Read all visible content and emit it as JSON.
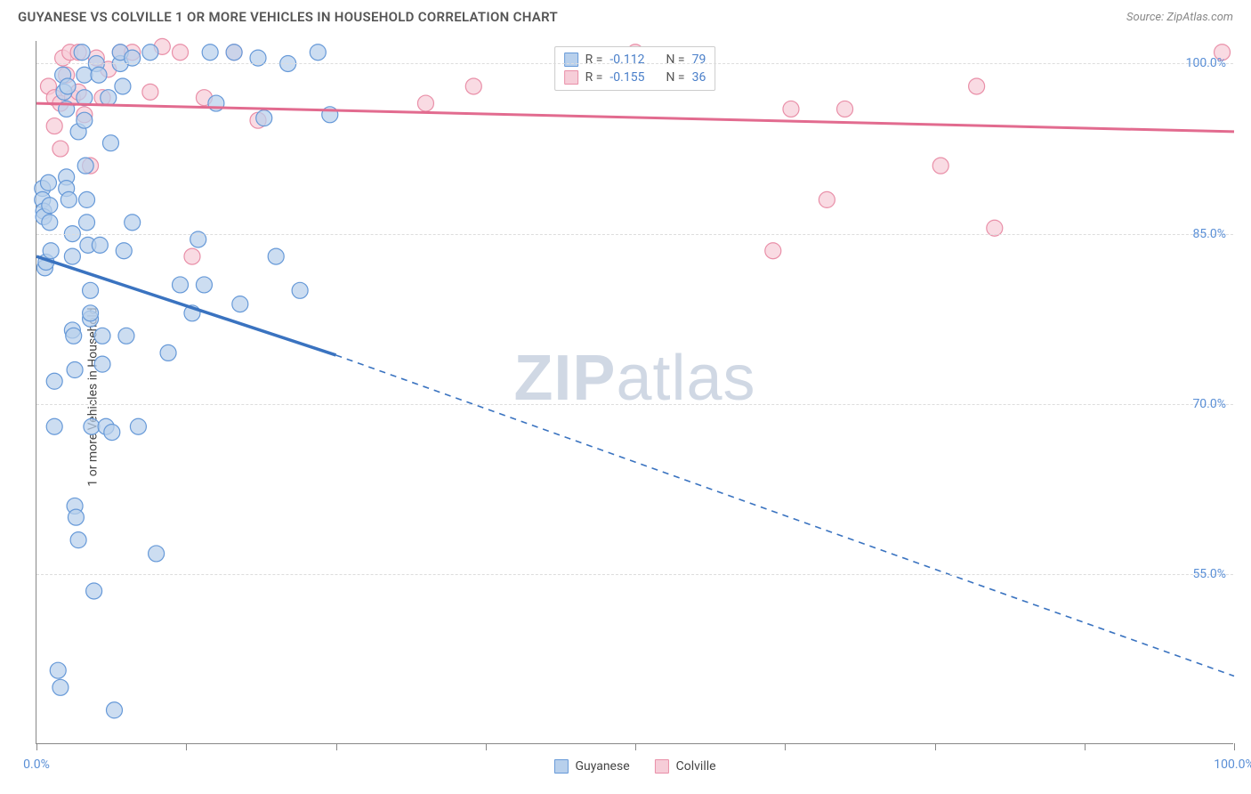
{
  "title": "GUYANESE VS COLVILLE 1 OR MORE VEHICLES IN HOUSEHOLD CORRELATION CHART",
  "source": "Source: ZipAtlas.com",
  "y_axis_label": "1 or more Vehicles in Household",
  "watermark_1": "ZIP",
  "watermark_2": "atlas",
  "chart": {
    "type": "scatter",
    "xlim": [
      0,
      100
    ],
    "ylim": [
      40,
      102
    ],
    "x_ticks": [
      0,
      12.5,
      25,
      37.5,
      50,
      62.5,
      75,
      87.5,
      100
    ],
    "x_tick_labels": {
      "0": "0.0%",
      "100": "100.0%"
    },
    "y_ticks": [
      55,
      70,
      85,
      100
    ],
    "y_tick_labels": {
      "55": "55.0%",
      "70": "70.0%",
      "85": "85.0%",
      "100": "100.0%"
    },
    "grid_color": "#dddddd",
    "background_color": "#ffffff",
    "axis_color": "#888888"
  },
  "series": {
    "guyanese": {
      "label": "Guyanese",
      "marker_color_fill": "#b8d0ec",
      "marker_color_stroke": "#6699d8",
      "marker_opacity": 0.72,
      "trend_color": "#3a73c0",
      "trend_start": {
        "x": 0,
        "y": 83
      },
      "trend_solid_end": {
        "x": 25,
        "y": 74.3
      },
      "trend_dash_end": {
        "x": 100,
        "y": 46
      },
      "R": "-0.112",
      "N": "79",
      "points": [
        {
          "x": 0.5,
          "y": 89
        },
        {
          "x": 0.5,
          "y": 88
        },
        {
          "x": 0.6,
          "y": 87
        },
        {
          "x": 0.6,
          "y": 86.5
        },
        {
          "x": 0.7,
          "y": 82
        },
        {
          "x": 0.8,
          "y": 82.5
        },
        {
          "x": 1.0,
          "y": 89.5
        },
        {
          "x": 1.1,
          "y": 87.5
        },
        {
          "x": 1.1,
          "y": 86
        },
        {
          "x": 1.2,
          "y": 83.5
        },
        {
          "x": 1.5,
          "y": 72
        },
        {
          "x": 1.5,
          "y": 68
        },
        {
          "x": 1.8,
          "y": 46.5
        },
        {
          "x": 2.0,
          "y": 45
        },
        {
          "x": 2.2,
          "y": 99
        },
        {
          "x": 2.3,
          "y": 97.5
        },
        {
          "x": 2.5,
          "y": 96
        },
        {
          "x": 2.6,
          "y": 98
        },
        {
          "x": 2.5,
          "y": 90
        },
        {
          "x": 2.5,
          "y": 89
        },
        {
          "x": 2.7,
          "y": 88
        },
        {
          "x": 3.0,
          "y": 83
        },
        {
          "x": 3.0,
          "y": 85
        },
        {
          "x": 3.0,
          "y": 76.5
        },
        {
          "x": 3.1,
          "y": 76
        },
        {
          "x": 3.2,
          "y": 73
        },
        {
          "x": 3.2,
          "y": 61
        },
        {
          "x": 3.3,
          "y": 60
        },
        {
          "x": 3.5,
          "y": 58
        },
        {
          "x": 3.5,
          "y": 94
        },
        {
          "x": 3.8,
          "y": 101
        },
        {
          "x": 4.0,
          "y": 99
        },
        {
          "x": 4.0,
          "y": 97
        },
        {
          "x": 4.0,
          "y": 95
        },
        {
          "x": 4.1,
          "y": 91
        },
        {
          "x": 4.2,
          "y": 88
        },
        {
          "x": 4.2,
          "y": 86
        },
        {
          "x": 4.3,
          "y": 84
        },
        {
          "x": 4.5,
          "y": 80
        },
        {
          "x": 4.5,
          "y": 77.5
        },
        {
          "x": 4.5,
          "y": 78
        },
        {
          "x": 4.6,
          "y": 68
        },
        {
          "x": 4.8,
          "y": 53.5
        },
        {
          "x": 5.0,
          "y": 100
        },
        {
          "x": 5.2,
          "y": 99
        },
        {
          "x": 5.3,
          "y": 84
        },
        {
          "x": 5.5,
          "y": 76
        },
        {
          "x": 5.5,
          "y": 73.5
        },
        {
          "x": 5.8,
          "y": 68
        },
        {
          "x": 6.0,
          "y": 97
        },
        {
          "x": 6.2,
          "y": 93
        },
        {
          "x": 6.3,
          "y": 67.5
        },
        {
          "x": 6.5,
          "y": 43
        },
        {
          "x": 7.0,
          "y": 100
        },
        {
          "x": 7.0,
          "y": 101
        },
        {
          "x": 7.2,
          "y": 98
        },
        {
          "x": 7.3,
          "y": 83.5
        },
        {
          "x": 7.5,
          "y": 76
        },
        {
          "x": 8.0,
          "y": 100.5
        },
        {
          "x": 8.0,
          "y": 86
        },
        {
          "x": 8.5,
          "y": 68
        },
        {
          "x": 9.5,
          "y": 101
        },
        {
          "x": 10.0,
          "y": 56.8
        },
        {
          "x": 11.0,
          "y": 74.5
        },
        {
          "x": 12.0,
          "y": 80.5
        },
        {
          "x": 13.0,
          "y": 78
        },
        {
          "x": 13.5,
          "y": 84.5
        },
        {
          "x": 14.0,
          "y": 80.5
        },
        {
          "x": 14.5,
          "y": 101
        },
        {
          "x": 15.0,
          "y": 96.5
        },
        {
          "x": 16.5,
          "y": 101
        },
        {
          "x": 17.0,
          "y": 78.8
        },
        {
          "x": 18.5,
          "y": 100.5
        },
        {
          "x": 19.0,
          "y": 95.2
        },
        {
          "x": 20.0,
          "y": 83
        },
        {
          "x": 21.0,
          "y": 100
        },
        {
          "x": 22.0,
          "y": 80
        },
        {
          "x": 23.5,
          "y": 101
        },
        {
          "x": 24.5,
          "y": 95.5
        }
      ]
    },
    "colville": {
      "label": "Colville",
      "marker_color_fill": "#f6cdd8",
      "marker_color_stroke": "#e98fa8",
      "marker_opacity": 0.72,
      "trend_color": "#e26b8f",
      "trend_start": {
        "x": 0,
        "y": 96.5
      },
      "trend_end": {
        "x": 100,
        "y": 94
      },
      "R": "-0.155",
      "N": "36",
      "points": [
        {
          "x": 1.0,
          "y": 98
        },
        {
          "x": 1.5,
          "y": 97
        },
        {
          "x": 1.5,
          "y": 94.5
        },
        {
          "x": 2.0,
          "y": 96.5
        },
        {
          "x": 2.0,
          "y": 92.5
        },
        {
          "x": 2.2,
          "y": 100.5
        },
        {
          "x": 2.5,
          "y": 99
        },
        {
          "x": 2.8,
          "y": 101
        },
        {
          "x": 3.0,
          "y": 97
        },
        {
          "x": 3.5,
          "y": 97.5
        },
        {
          "x": 3.5,
          "y": 101
        },
        {
          "x": 4.0,
          "y": 95.5
        },
        {
          "x": 4.5,
          "y": 91
        },
        {
          "x": 5.0,
          "y": 100.5
        },
        {
          "x": 5.5,
          "y": 97
        },
        {
          "x": 6.0,
          "y": 99.5
        },
        {
          "x": 7.0,
          "y": 101
        },
        {
          "x": 8.0,
          "y": 101
        },
        {
          "x": 9.5,
          "y": 97.5
        },
        {
          "x": 10.5,
          "y": 101.5
        },
        {
          "x": 12.0,
          "y": 101
        },
        {
          "x": 13.0,
          "y": 83
        },
        {
          "x": 14.0,
          "y": 97
        },
        {
          "x": 16.5,
          "y": 101
        },
        {
          "x": 18.5,
          "y": 95
        },
        {
          "x": 32.5,
          "y": 96.5
        },
        {
          "x": 36.5,
          "y": 98
        },
        {
          "x": 50.0,
          "y": 101
        },
        {
          "x": 61.5,
          "y": 83.5
        },
        {
          "x": 63.0,
          "y": 96
        },
        {
          "x": 66.0,
          "y": 88
        },
        {
          "x": 67.5,
          "y": 96
        },
        {
          "x": 75.5,
          "y": 91
        },
        {
          "x": 78.5,
          "y": 98
        },
        {
          "x": 80.0,
          "y": 85.5
        },
        {
          "x": 99.0,
          "y": 101
        }
      ]
    }
  },
  "legend_stats": {
    "r_label": "R =",
    "n_label": "N ="
  },
  "bottom_legend": {
    "guyanese": "Guyanese",
    "colville": "Colville"
  }
}
